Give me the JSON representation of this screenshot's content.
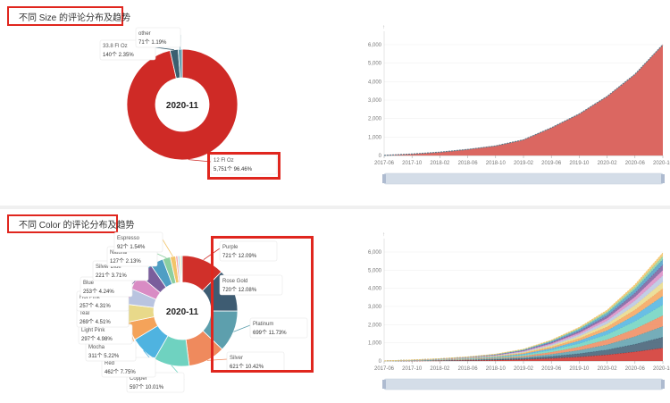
{
  "panels": [
    {
      "title": "不同 Size 的评论分布及趋势",
      "center_label": "2020-11",
      "highlight_label": "12 Fl Oz",
      "highlight_value": "5,751个  96.46%"
    },
    {
      "title": "不同 Color 的评论分布及趋势",
      "center_label": "2020-11"
    }
  ],
  "colors": {
    "red": "#d0302a",
    "highlight_border": "#e0261e",
    "size_area": "#d95f58",
    "size_line": "#5e7a8a",
    "slider_fill": "#d4dde8"
  },
  "chart_data": [
    {
      "type": "pie",
      "style": "donut",
      "center_text": "2020-11",
      "slices": [
        {
          "name": "12 Fl Oz",
          "count": 5751,
          "count_label": "5,751个",
          "pct": 96.46,
          "pct_label": "96.46%",
          "color": "#cf2a26"
        },
        {
          "name": "33.8 Fl Oz",
          "count": 140,
          "count_label": "140个",
          "pct": 2.35,
          "pct_label": "2.35%",
          "color": "#3a5f70"
        },
        {
          "name": "other",
          "count": 71,
          "count_label": "71个",
          "pct": 1.19,
          "pct_label": "1.19%",
          "color": "#66a0b0"
        }
      ]
    },
    {
      "type": "area",
      "x": [
        "2017-06",
        "2017-10",
        "2018-02",
        "2018-06",
        "2018-10",
        "2019-02",
        "2019-06",
        "2019-10",
        "2020-02",
        "2020-06",
        "2020-10"
      ],
      "values": [
        5,
        80,
        180,
        330,
        520,
        850,
        1500,
        2250,
        3200,
        4400,
        6000
      ],
      "ylim": [
        0,
        6000
      ],
      "yticks": [
        "0",
        "1,000",
        "2,000",
        "3,000",
        "4,000",
        "5,000",
        "6,000"
      ],
      "xticks": [
        "2017-06",
        "2017-10",
        "2018-02",
        "2018-06",
        "2018-10",
        "2019-02",
        "2019-06",
        "2019-10",
        "2020-02",
        "2020-06",
        "2020-10"
      ]
    },
    {
      "type": "pie",
      "style": "donut",
      "center_text": "2020-11",
      "slices": [
        {
          "name": "Purple",
          "count_label": "721个",
          "pct": 12.09,
          "pct_label": "12.09%",
          "color": "#d0302a"
        },
        {
          "name": "Rose Gold",
          "count_label": "720个",
          "pct": 12.08,
          "pct_label": "12.08%",
          "color": "#3e5c72"
        },
        {
          "name": "Platinum",
          "count_label": "699个",
          "pct": 11.73,
          "pct_label": "11.73%",
          "color": "#5d9fad"
        },
        {
          "name": "Silver",
          "count_label": "621个",
          "pct": 10.42,
          "pct_label": "10.42%",
          "color": "#ef8a5d"
        },
        {
          "name": "Copper",
          "count_label": "597个",
          "pct": 10.01,
          "pct_label": "10.01%",
          "color": "#6fd2c0"
        },
        {
          "name": "Red",
          "count_label": "462个",
          "pct": 7.75,
          "pct_label": "7.75%",
          "color": "#4fb3e0"
        },
        {
          "name": "Mocha",
          "count_label": "311个",
          "pct": 5.22,
          "pct_label": "5.22%",
          "color": "#f4a35a"
        },
        {
          "name": "Light Pink",
          "count_label": "297个",
          "pct": 4.98,
          "pct_label": "4.98%",
          "color": "#e8d98a"
        },
        {
          "name": "Teal",
          "count_label": "269个",
          "pct": 4.51,
          "pct_label": "4.51%",
          "color": "#b9c4e0"
        },
        {
          "name": "Hot Pink",
          "count_label": "257个",
          "pct": 4.31,
          "pct_label": "4.31%",
          "color": "#d98cc4"
        },
        {
          "name": "Blue",
          "count_label": "253个",
          "pct": 4.24,
          "pct_label": "4.24%",
          "color": "#7a5e9c"
        },
        {
          "name": "Silver Blue",
          "count_label": "221个",
          "pct": 3.71,
          "pct_label": "3.71%",
          "color": "#4f9ec4"
        },
        {
          "name": "Natural",
          "count_label": "127个",
          "pct": 2.13,
          "pct_label": "2.13%",
          "color": "#8ccfa0"
        },
        {
          "name": "Espresso",
          "count_label": "92个",
          "pct": 1.54,
          "pct_label": "1.54%",
          "color": "#f2c46a"
        },
        {
          "name": "",
          "count_label": "",
          "pct": 0.6,
          "pct_label": "",
          "color": "#f5a8a8"
        },
        {
          "name": "",
          "count_label": "",
          "pct": 0.5,
          "pct_label": "",
          "color": "#a8d4f0"
        },
        {
          "name": "",
          "count_label": "",
          "pct": 0.4,
          "pct_label": "",
          "color": "#f0e08a"
        },
        {
          "name": "",
          "count_label": "",
          "pct": 0.35,
          "pct_label": "",
          "color": "#9bd0c8"
        }
      ]
    },
    {
      "type": "area",
      "stacked": true,
      "x": [
        "2017-06",
        "2017-10",
        "2018-02",
        "2018-06",
        "2018-10",
        "2019-02",
        "2019-06",
        "2019-10",
        "2020-02",
        "2020-06",
        "2020-10"
      ],
      "ylim": [
        0,
        6000
      ],
      "yticks": [
        "0",
        "1,000",
        "2,000",
        "3,000",
        "4,000",
        "5,000",
        "6,000"
      ],
      "xticks": [
        "2017-06",
        "2017-10",
        "2018-02",
        "2018-06",
        "2018-10",
        "2019-02",
        "2019-06",
        "2019-10",
        "2020-02",
        "2020-06",
        "2020-10"
      ],
      "total": [
        5,
        60,
        130,
        230,
        380,
        650,
        1150,
        1850,
        2800,
        4200,
        5950
      ],
      "series": [
        {
          "color": "#d0302a",
          "share": 0.12
        },
        {
          "color": "#3e5c72",
          "share": 0.1
        },
        {
          "color": "#5d9fad",
          "share": 0.1
        },
        {
          "color": "#ef8a5d",
          "share": 0.1
        },
        {
          "color": "#6fd2c0",
          "share": 0.1
        },
        {
          "color": "#4fb3e0",
          "share": 0.08
        },
        {
          "color": "#f4a35a",
          "share": 0.07
        },
        {
          "color": "#e8d98a",
          "share": 0.06
        },
        {
          "color": "#b9c4e0",
          "share": 0.06
        },
        {
          "color": "#d98cc4",
          "share": 0.05
        },
        {
          "color": "#7a5e9c",
          "share": 0.05
        },
        {
          "color": "#4f9ec4",
          "share": 0.05
        },
        {
          "color": "#8ccfa0",
          "share": 0.03
        },
        {
          "color": "#f2c46a",
          "share": 0.03
        }
      ]
    }
  ]
}
